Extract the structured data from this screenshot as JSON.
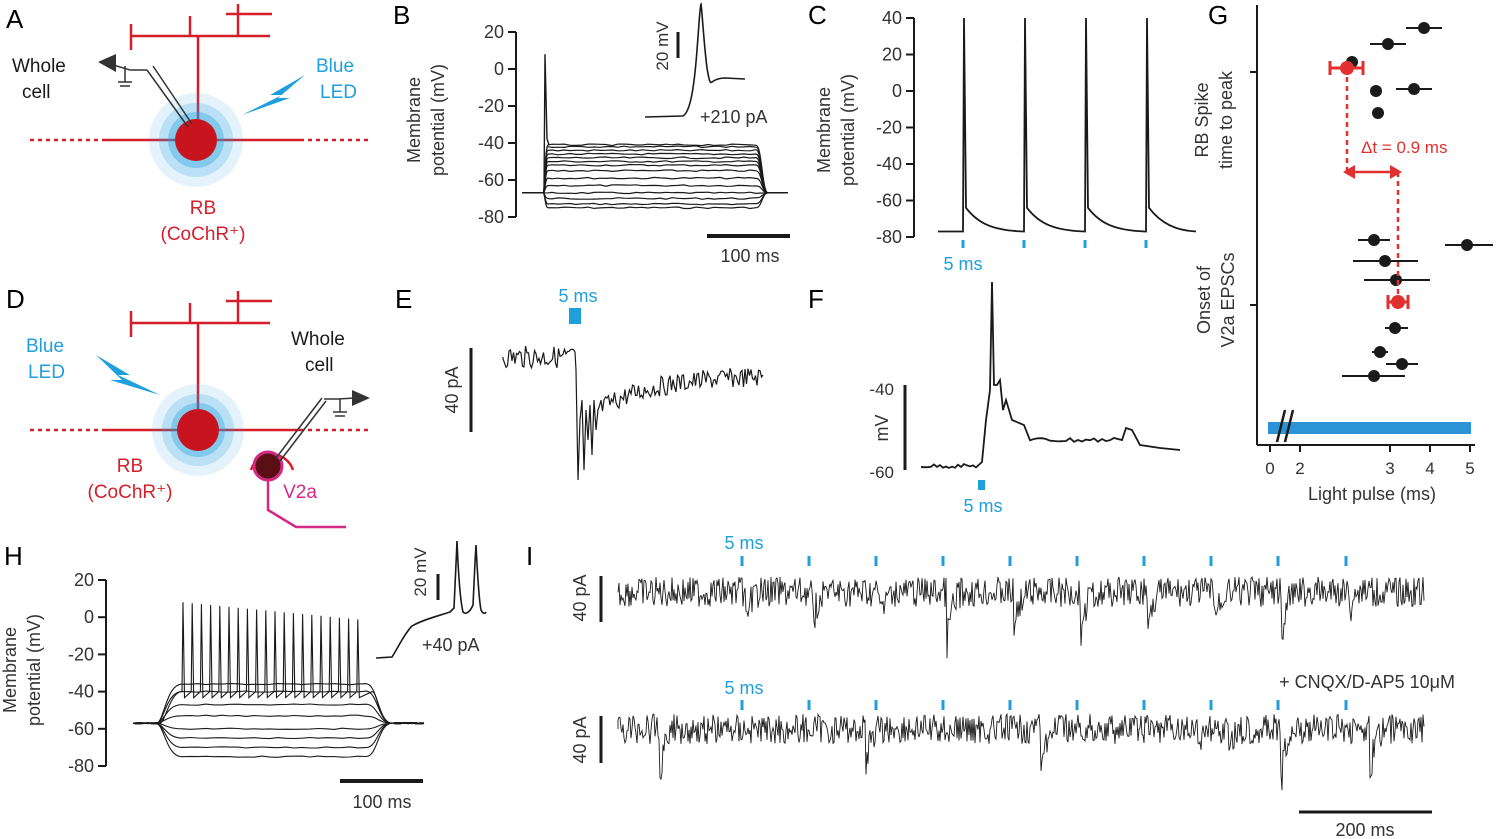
{
  "colors": {
    "red": "#d61e2b",
    "blue": "#1f9fdc",
    "magenta": "#d42a86",
    "black": "#1a1a1a",
    "cellDark": "#5a0f14"
  },
  "panels": {
    "A": {
      "letter": "A",
      "recording": [
        "Whole",
        "cell"
      ],
      "led": [
        "Blue",
        "LED"
      ],
      "cell": [
        "RB",
        "(CoChR⁺)"
      ]
    },
    "B": {
      "letter": "B",
      "ylabel": [
        "Membrane",
        "potential (mV)"
      ],
      "yticks": [
        "20",
        "0",
        "-20",
        "-40",
        "-60",
        "-80"
      ],
      "scale_time": "100 ms",
      "inset_scale": "20 mV",
      "inset_current": "+210 pA"
    },
    "C": {
      "letter": "C",
      "ylabel": [
        "Membrane",
        "potential (mV)"
      ],
      "yticks": [
        "40",
        "20",
        "0",
        "-20",
        "-40",
        "-60",
        "-80"
      ],
      "stim_label": "5 ms"
    },
    "D": {
      "letter": "D",
      "led": [
        "Blue",
        "LED"
      ],
      "recording": [
        "Whole",
        "cell"
      ],
      "cell": [
        "RB",
        "(CoChR⁺)"
      ],
      "target": "V2a"
    },
    "E": {
      "letter": "E",
      "stim_label": "5 ms",
      "scale": "40 pA"
    },
    "F": {
      "letter": "F",
      "ylabel": "mV",
      "yticks": [
        "-40",
        "-60"
      ],
      "stim_label": "5 ms"
    },
    "G": {
      "letter": "G",
      "ylabel_top": [
        "RB Spike",
        "time to peak"
      ],
      "ylabel_bottom": [
        "Onset of",
        "V2a EPSCs"
      ],
      "annotation": "Δt = 0.9 ms",
      "xlabel": "Light pulse (ms)",
      "xticks": [
        "0",
        "2",
        "3",
        "4",
        "5"
      ]
    },
    "H": {
      "letter": "H",
      "ylabel": [
        "Membrane",
        "potential (mV)"
      ],
      "yticks": [
        "20",
        "0",
        "-20",
        "-40",
        "-60",
        "-80"
      ],
      "scale_time": "100 ms",
      "inset_scale": "20 mV",
      "inset_current": "+40 pA"
    },
    "I": {
      "letter": "I",
      "stim_label_top": "5 ms",
      "stim_label_bottom": "5 ms",
      "scale_top": "40 pA",
      "scale_bottom": "40 pA",
      "drug": "+ CNQX/D-AP5 10μM",
      "scale_time": "200 ms"
    }
  },
  "chart_data": [
    {
      "panel": "B",
      "type": "line",
      "ylabel": "Membrane potential (mV)",
      "ylim": [
        -80,
        20
      ],
      "series": [
        {
          "values": [
            -75,
            -73,
            -70,
            -67,
            -63,
            -59,
            -55,
            -52,
            -50,
            -48,
            -46,
            -44,
            -42,
            -41
          ]
        }
      ],
      "resting": -67,
      "spike_peak": 8
    },
    {
      "panel": "C",
      "type": "line",
      "ylabel": "Membrane potential (mV)",
      "ylim": [
        -80,
        40
      ],
      "baseline": -77,
      "spike_peak": 40,
      "spike_count": 4
    },
    {
      "panel": "G",
      "type": "scatter",
      "xlabel": "Light pulse (ms)",
      "xlim": [
        0,
        5
      ],
      "series": [
        {
          "name": "RB Spike time to peak",
          "x": [
            3.55,
            2.65,
            1.9,
            3.75,
            2.35,
            2.4
          ],
          "err": [
            0.55,
            0.65,
            0.12,
            0.65,
            0.12,
            0.12
          ]
        },
        {
          "name": "Onset of V2a EPSCs",
          "x": [
            5.0,
            3.3,
            3.45,
            3.7,
            3.65,
            3.4,
            3.8,
            3.3
          ],
          "err": [
            0.35,
            0.15,
            0.4,
            0.5,
            0.15,
            0.12,
            0.28,
            0.45
          ]
        }
      ],
      "means": {
        "RB Spike time to peak": {
          "x": 2.8,
          "err": 0.25
        },
        "Onset of V2a EPSCs": {
          "x": 3.7,
          "err": 0.15
        }
      },
      "delta_t": 0.9
    },
    {
      "panel": "H",
      "type": "line",
      "ylabel": "Membrane potential (mV)",
      "ylim": [
        -80,
        20
      ],
      "series": [
        {
          "values": [
            -75,
            -70,
            -65,
            -60,
            -53,
            -47,
            -40,
            -36
          ]
        }
      ],
      "resting": -57,
      "spike_peak": 8,
      "spike_count": 20
    }
  ]
}
